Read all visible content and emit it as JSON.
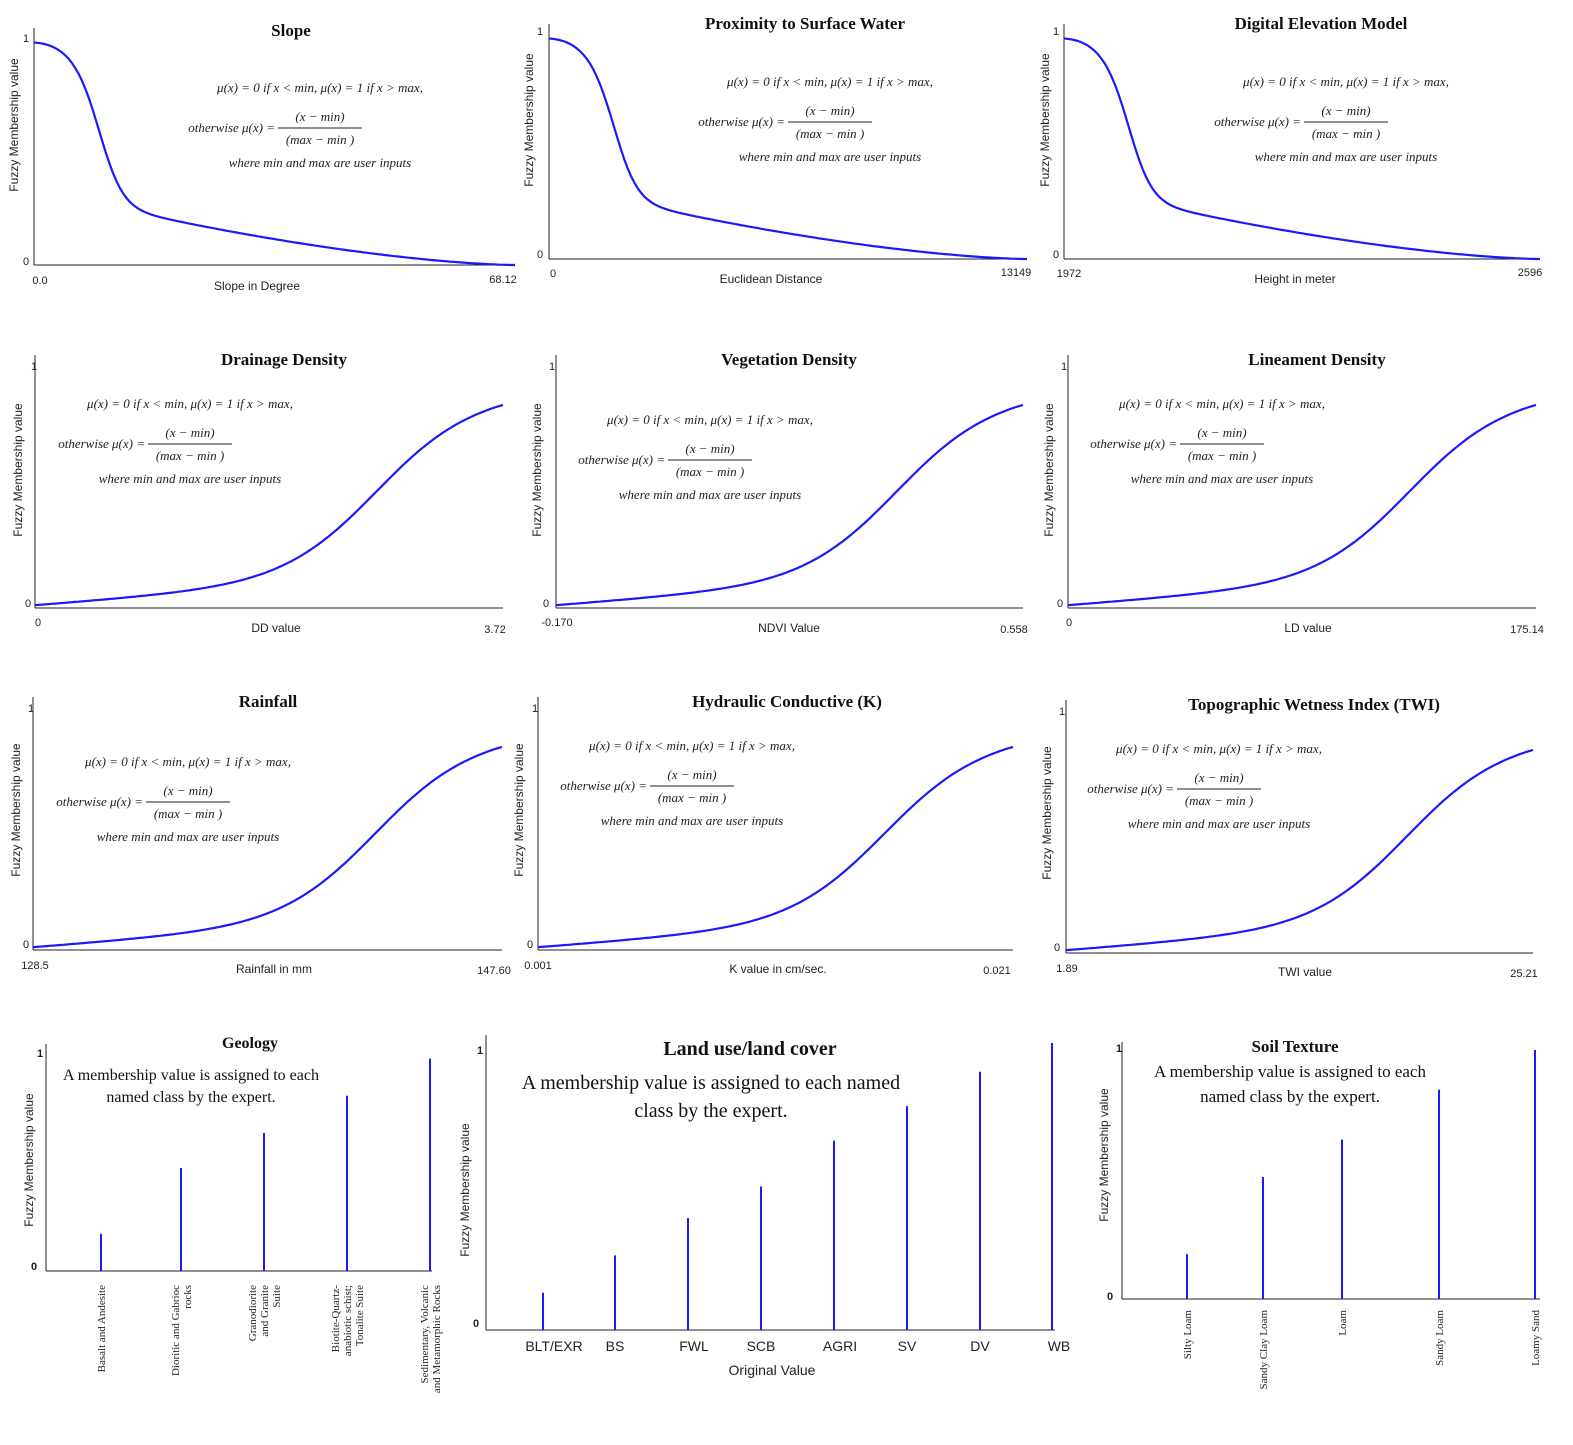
{
  "colors": {
    "curve": "#1a1aff",
    "axis": "#222222",
    "text": "#111111"
  },
  "formula": {
    "line1": "μ(x) = 0 if x < min, μ(x) = 1 if x > max,",
    "line2_lhs": "otherwise μ(x) =",
    "numerator": "(x − min)",
    "denominator": "(max − min )",
    "line3": "where min and max are user inputs"
  },
  "y_axis_label": "Fuzzy Membership value",
  "y_ticks": [
    "0",
    "1"
  ],
  "chart_data": [
    {
      "id": "slope",
      "type": "line",
      "curve": "decreasing",
      "title": "Slope",
      "xlabel": "Slope in Degree",
      "ylabel": "Fuzzy Membership value",
      "xmin": "0.0",
      "xmax": "68.12",
      "ylim": [
        0,
        1
      ]
    },
    {
      "id": "water",
      "type": "line",
      "curve": "decreasing",
      "title": "Proximity to Surface Water",
      "xlabel": "Euclidean Distance",
      "ylabel": "Fuzzy Membership value",
      "xmin": "0",
      "xmax": "13149",
      "ylim": [
        0,
        1
      ]
    },
    {
      "id": "dem",
      "type": "line",
      "curve": "decreasing",
      "title": "Digital Elevation Model",
      "xlabel": "Height in meter",
      "ylabel": "Fuzzy Membership value",
      "xmin": "1972",
      "xmax": "2596",
      "ylim": [
        0,
        1
      ]
    },
    {
      "id": "dd",
      "type": "line",
      "curve": "increasing",
      "title": "Drainage Density",
      "xlabel": "DD value",
      "ylabel": "Fuzzy Membership value",
      "xmin": "0",
      "xmax": "3.72",
      "ylim": [
        0,
        1
      ]
    },
    {
      "id": "ndvi",
      "type": "line",
      "curve": "increasing",
      "title": "Vegetation Density",
      "xlabel": "NDVI Value",
      "ylabel": "Fuzzy Membership value",
      "xmin": "-0.170",
      "xmax": "0.558",
      "ylim": [
        0,
        1
      ]
    },
    {
      "id": "ld",
      "type": "line",
      "curve": "increasing",
      "title": "Lineament Density",
      "xlabel": "LD value",
      "ylabel": "Fuzzy Membership value",
      "xmin": "0",
      "xmax": "175.14",
      "ylim": [
        0,
        1
      ]
    },
    {
      "id": "rain",
      "type": "line",
      "curve": "increasing",
      "title": "Rainfall",
      "xlabel": "Rainfall in mm",
      "ylabel": "Fuzzy Membership value",
      "xmin": "128.5",
      "xmax": "147.60",
      "ylim": [
        0,
        1
      ]
    },
    {
      "id": "k",
      "type": "line",
      "curve": "increasing",
      "title": "Hydraulic Conductive (K)",
      "xlabel": "K value in cm/sec.",
      "ylabel": "Fuzzy Membership value",
      "xmin": "0.001",
      "xmax": "0.021",
      "ylim": [
        0,
        1
      ]
    },
    {
      "id": "twi",
      "type": "line",
      "curve": "increasing",
      "title": "Topographic Wetness Index (TWI)",
      "xlabel": "TWI value",
      "ylabel": "Fuzzy Membership value",
      "xmin": "1.89",
      "xmax": "25.21",
      "ylim": [
        0,
        1
      ]
    },
    {
      "id": "geology",
      "type": "bar",
      "title": "Geology",
      "ylabel": "Fuzzy Membership value",
      "note": [
        "A membership value is assigned to each",
        "named class by the expert."
      ],
      "categories": [
        "Basalt and Andesite",
        "Dioritic and Gabrioc rocks",
        "Granodiorite and Granite Suite",
        "Biotite-Quartz-anabiotic schist; Tonalite Suite",
        "Sedimentary, Volcanic and Metamorphic Rocks"
      ],
      "category_lines": [
        [
          "Basalt and Andesite"
        ],
        [
          "Dioritic and Gabrioc",
          "rocks"
        ],
        [
          "Granodiorite",
          "and Granite",
          "Suite"
        ],
        [
          "Biotite-Quartz-",
          "anabiotic schist;",
          "Tonalite Suite"
        ],
        [
          "Sedimentary, Volcanic",
          "and Metamorphic Rocks"
        ]
      ],
      "values": [
        0.17,
        0.47,
        0.63,
        0.8,
        0.97
      ],
      "ylim": [
        0,
        1
      ]
    },
    {
      "id": "lulc",
      "type": "bar",
      "title": "Land use/land cover",
      "xlabel": "Original Value",
      "ylabel": "Fuzzy Membership value",
      "note": [
        "A membership value is assigned to each named",
        "class by the expert."
      ],
      "categories": [
        "BLT/EXR",
        "BS",
        "FWL",
        "SCB",
        "AGRI",
        "SV",
        "DV",
        "WB"
      ],
      "values": [
        0.13,
        0.26,
        0.39,
        0.5,
        0.66,
        0.78,
        0.9,
        1.0
      ],
      "ylim": [
        0,
        1
      ]
    },
    {
      "id": "soil",
      "type": "bar",
      "title": "Soil Texture",
      "ylabel": "Fuzzy Membership value",
      "note": [
        "A membership value is assigned to each",
        "named class by the expert."
      ],
      "categories": [
        "Silty Loam",
        "Sandy Clay Loam",
        "Loam",
        "Sandy Loam",
        "Loamy Sand"
      ],
      "category_lines": [
        [
          "Silty Loam"
        ],
        [
          "Sandy Clay Loam"
        ],
        [
          "Loam"
        ],
        [
          "Sandy Loam"
        ],
        [
          "Loamy Sand"
        ]
      ],
      "values": [
        0.18,
        0.49,
        0.64,
        0.84,
        1.0
      ],
      "ylim": [
        0,
        1
      ]
    }
  ]
}
